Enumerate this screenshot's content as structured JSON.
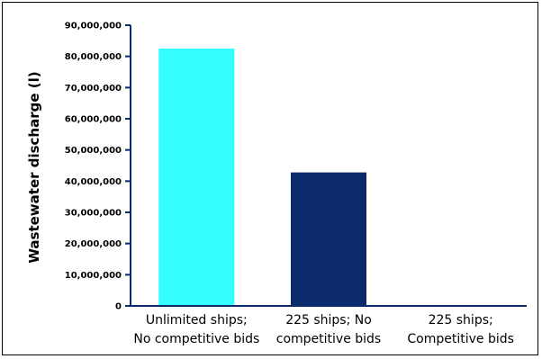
{
  "chart_data": {
    "type": "bar",
    "categories": [
      [
        "Unlimited ships;",
        "No competitive bids"
      ],
      [
        "225 ships; No",
        "competitive bids"
      ],
      [
        "225 ships;",
        "Competitive bids"
      ]
    ],
    "values": [
      82500000,
      42800000,
      0
    ],
    "colors": [
      "#33FFFF",
      "#0A2A6B",
      "#0A2A6B"
    ],
    "title": "",
    "xlabel": "",
    "ylabel": "Wastewater discharge (l)",
    "ylim": [
      0,
      90000000
    ],
    "yticks": [
      0,
      10000000,
      20000000,
      30000000,
      40000000,
      50000000,
      60000000,
      70000000,
      80000000,
      90000000
    ],
    "ytick_labels": [
      "0",
      "10,000,000",
      "20,000,000",
      "30,000,000",
      "40,000,000",
      "50,000,000",
      "60,000,000",
      "70,000,000",
      "80,000,000",
      "90,000,000"
    ],
    "grid": false,
    "legend": "none"
  }
}
